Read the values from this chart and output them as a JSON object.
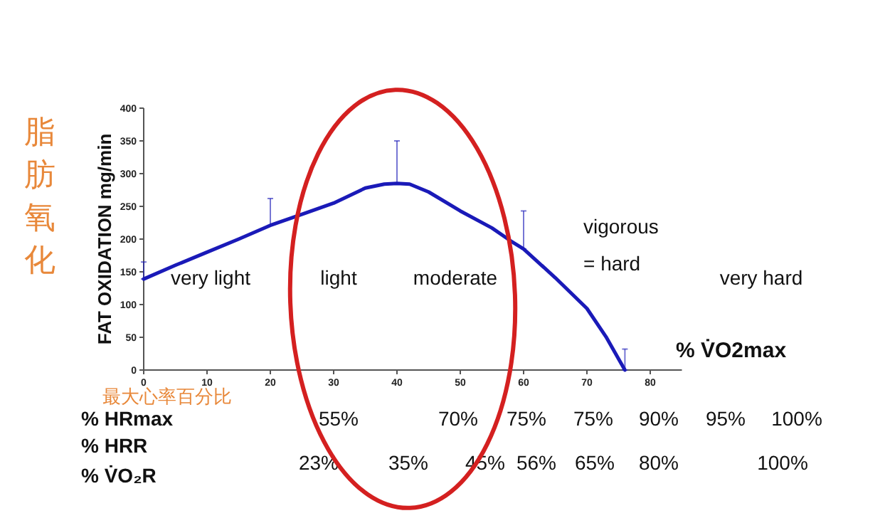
{
  "chart_data": {
    "type": "line",
    "ylabel": "FAT OXIDATION mg/min",
    "xlabel": "% V̇O2max",
    "xlim": [
      0,
      85
    ],
    "xticks": [
      0,
      10,
      20,
      30,
      40,
      50,
      60,
      70,
      80
    ],
    "ylim": [
      0,
      400
    ],
    "yticks": [
      0,
      50,
      100,
      150,
      200,
      250,
      300,
      350,
      400
    ],
    "grid": false,
    "marker": "none",
    "line_style": "solid",
    "series": [
      {
        "color": "#1a1ab8",
        "x": [
          0,
          5,
          10,
          15,
          20,
          25,
          30,
          35,
          38,
          40,
          42,
          45,
          50,
          55,
          58,
          60,
          65,
          70,
          73,
          76
        ],
        "values": [
          139,
          160,
          180,
          200,
          221,
          238,
          255,
          278,
          284,
          285,
          284,
          272,
          243,
          217,
          197,
          185,
          141,
          94,
          51,
          0
        ],
        "errors": [
          [
            139,
            165
          ],
          null,
          null,
          null,
          [
            221,
            262
          ],
          null,
          null,
          null,
          null,
          [
            285,
            350
          ],
          null,
          null,
          null,
          null,
          null,
          [
            185,
            243
          ],
          null,
          null,
          null,
          [
            0,
            32
          ]
        ]
      }
    ],
    "annotations": [
      "very light",
      "light",
      "moderate",
      "vigorous\n= hard",
      "very hard",
      "脂肪氧化",
      "最大心率百分比",
      "% HRmax",
      "% HRR",
      "% V̇O₂R",
      "55%",
      "70%",
      "75%",
      "75%",
      "90%",
      "95%",
      "100%",
      "23%",
      "35%",
      "45%",
      "56%",
      "65%",
      "80%",
      "100%"
    ]
  }
}
